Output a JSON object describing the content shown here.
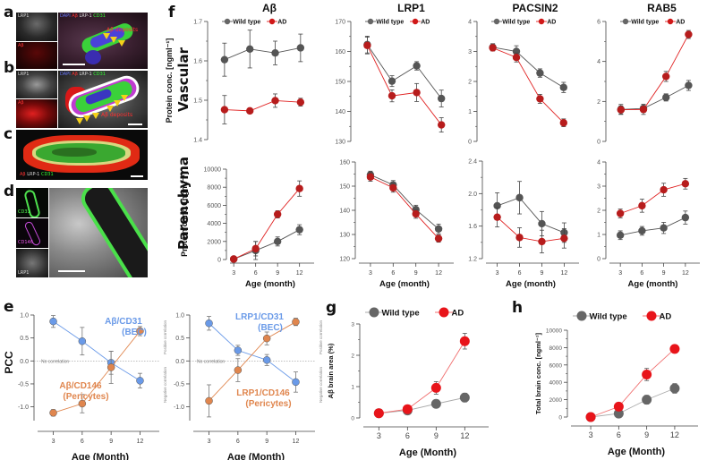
{
  "panel_labels": {
    "a": "a",
    "b": "b",
    "c": "c",
    "d": "d",
    "e": "e",
    "f": "f",
    "g": "g",
    "h": "h"
  },
  "colors": {
    "wild_type": "#555555",
    "ad": "#b71c1c",
    "ad_bright": "#e8141a",
    "bec": "#6a9ae8",
    "pericytes": "#e0864e"
  },
  "micrographs": {
    "a": {
      "small_top": "LRP1",
      "small_bottom": "Aβ",
      "merge": [
        "DAPI",
        "Aβ",
        "LRP-1",
        "CD31"
      ],
      "annotation": "Aβ deposits"
    },
    "b": {
      "small_top": "LRP1",
      "small_bottom": "Aβ",
      "merge": [
        "DAPI",
        "Aβ",
        "LRP-1",
        "CD31"
      ],
      "annotation": "Aβ deposits"
    },
    "c": {
      "merge": [
        "Aβ",
        "LRP-1",
        "CD31"
      ]
    },
    "d": {
      "small_1": "CD31",
      "small_2": "CD146",
      "small_3": "LRP1"
    }
  },
  "row_titles": {
    "vascular": "Vascular",
    "parenchyma": "Parenchyma"
  },
  "chart_data": [
    {
      "id": "f-vascular-abeta",
      "panel": "f",
      "type": "line",
      "title": "Aβ",
      "row": "Vascular",
      "ylabel": "Protein conc. [ngml⁻¹]",
      "xlabel": "",
      "x": [
        3,
        6,
        9,
        12
      ],
      "ylim": [
        1.4,
        1.7
      ],
      "yticks": [
        1.4,
        1.5,
        1.6,
        1.7
      ],
      "yticklabels": [
        "1.4",
        "1.5",
        "1.6",
        "1.7"
      ],
      "legend": [
        "Wild type",
        "AD"
      ],
      "legend_position": "top",
      "series": [
        {
          "name": "Wild type",
          "values": [
            1.603,
            1.63,
            1.62,
            1.633
          ],
          "errors": [
            0.042,
            0.048,
            0.03,
            0.035
          ]
        },
        {
          "name": "AD",
          "values": [
            1.476,
            1.473,
            1.499,
            1.495
          ],
          "errors": [
            0.036,
            0.005,
            0.017,
            0.01
          ]
        }
      ]
    },
    {
      "id": "f-vascular-lrp1",
      "panel": "f",
      "type": "line",
      "title": "LRP1",
      "row": "Vascular",
      "x": [
        3,
        6,
        9,
        12
      ],
      "ylim": [
        130,
        170
      ],
      "yticks": [
        130,
        140,
        150,
        160,
        170
      ],
      "yticklabels": [
        "130",
        "140",
        "150",
        "160",
        "170"
      ],
      "legend": [
        "Wild type",
        "AD"
      ],
      "legend_position": "top",
      "series": [
        {
          "name": "Wild type",
          "values": [
            162.3,
            150.1,
            155.2,
            144.3
          ],
          "errors": [
            2.8,
            1.8,
            1.4,
            2.8
          ]
        },
        {
          "name": "AD",
          "values": [
            162.0,
            145.2,
            146.3,
            135.5
          ],
          "errors": [
            2.8,
            2.0,
            3.0,
            2.4
          ]
        }
      ]
    },
    {
      "id": "f-vascular-pacsin2",
      "panel": "f",
      "type": "line",
      "title": "PACSIN2",
      "row": "Vascular",
      "x": [
        3,
        6,
        9,
        12
      ],
      "ylim": [
        0,
        4
      ],
      "yticks": [
        0,
        1,
        2,
        3,
        4
      ],
      "yticklabels": [
        "0",
        "1",
        "2",
        "3",
        "4"
      ],
      "legend": [
        "Wild type",
        "AD"
      ],
      "legend_position": "top",
      "series": [
        {
          "name": "Wild type",
          "values": [
            3.14,
            3.0,
            2.28,
            1.8
          ],
          "errors": [
            0.12,
            0.19,
            0.14,
            0.17
          ]
        },
        {
          "name": "AD",
          "values": [
            3.12,
            2.8,
            1.42,
            0.62
          ],
          "errors": [
            0.1,
            0.15,
            0.15,
            0.13
          ]
        }
      ]
    },
    {
      "id": "f-vascular-rab5",
      "panel": "f",
      "type": "line",
      "title": "RAB5",
      "row": "Vascular",
      "x": [
        3,
        6,
        9,
        12
      ],
      "ylim": [
        0,
        6
      ],
      "yticks": [
        0,
        2,
        4,
        6
      ],
      "yticklabels": [
        "0",
        "2",
        "4",
        "6"
      ],
      "legend": [
        "Wild type",
        "AD"
      ],
      "legend_position": "top",
      "series": [
        {
          "name": "Wild type",
          "values": [
            1.6,
            1.65,
            2.2,
            2.8
          ],
          "errors": [
            0.25,
            0.2,
            0.18,
            0.25
          ]
        },
        {
          "name": "AD",
          "values": [
            1.58,
            1.6,
            3.25,
            5.35
          ],
          "errors": [
            0.2,
            0.25,
            0.25,
            0.2
          ]
        }
      ]
    },
    {
      "id": "f-parenchyma-abeta",
      "panel": "f",
      "type": "line",
      "row": "Parenchyma",
      "ylabel": "Protein conc. [ngml⁻¹]",
      "xlabel": "Age (month)",
      "x": [
        3,
        6,
        9,
        12
      ],
      "ylim": [
        0,
        10000
      ],
      "yticks": [
        0,
        2000,
        4000,
        6000,
        8000,
        10000
      ],
      "yticklabels": [
        "0",
        "2000",
        "4000",
        "6000",
        "8000",
        "10000"
      ],
      "xticklabels": [
        "3",
        "6",
        "9",
        "12"
      ],
      "series": [
        {
          "name": "Wild type",
          "values": [
            50,
            1000,
            2000,
            3300
          ],
          "errors": [
            200,
            1000,
            500,
            550
          ]
        },
        {
          "name": "AD",
          "values": [
            50,
            1200,
            5000,
            7850
          ],
          "errors": [
            150,
            800,
            400,
            850
          ]
        }
      ]
    },
    {
      "id": "f-parenchyma-lrp1",
      "panel": "f",
      "type": "line",
      "row": "Parenchyma",
      "xlabel": "Age (month)",
      "x": [
        3,
        6,
        9,
        12
      ],
      "ylim": [
        120,
        160
      ],
      "yticks": [
        120,
        130,
        140,
        150,
        160
      ],
      "yticklabels": [
        "120",
        "130",
        "140",
        "150",
        "160"
      ],
      "xticklabels": [
        "3",
        "6",
        "9",
        "12"
      ],
      "series": [
        {
          "name": "Wild type",
          "values": [
            154.7,
            150.5,
            140.3,
            132.3
          ],
          "errors": [
            1.5,
            1.8,
            1.8,
            2.0
          ]
        },
        {
          "name": "AD",
          "values": [
            153.8,
            149.3,
            138.5,
            128.3
          ],
          "errors": [
            1.8,
            1.8,
            1.8,
            1.5
          ]
        }
      ]
    },
    {
      "id": "f-parenchyma-pacsin2",
      "panel": "f",
      "type": "line",
      "row": "Parenchyma",
      "xlabel": "Age (month)",
      "x": [
        3,
        6,
        9,
        12
      ],
      "ylim": [
        1.2,
        2.4
      ],
      "yticks": [
        1.2,
        1.6,
        2.0,
        2.4
      ],
      "yticklabels": [
        "1.2",
        "1.6",
        "2.0",
        "2.4"
      ],
      "xticklabels": [
        "3",
        "6",
        "9",
        "12"
      ],
      "series": [
        {
          "name": "Wild type",
          "values": [
            1.85,
            1.95,
            1.63,
            1.52
          ],
          "errors": [
            0.16,
            0.2,
            0.15,
            0.12
          ]
        },
        {
          "name": "AD",
          "values": [
            1.71,
            1.46,
            1.41,
            1.45
          ],
          "errors": [
            0.12,
            0.12,
            0.14,
            0.12
          ]
        }
      ]
    },
    {
      "id": "f-parenchyma-rab5",
      "panel": "f",
      "type": "line",
      "row": "Parenchyma",
      "xlabel": "Age (month)",
      "x": [
        3,
        6,
        9,
        12
      ],
      "ylim": [
        0,
        4
      ],
      "yticks": [
        0,
        1,
        2,
        3,
        4
      ],
      "yticklabels": [
        "0",
        "1",
        "2",
        "3",
        "4"
      ],
      "xticklabels": [
        "3",
        "6",
        "9",
        "12"
      ],
      "series": [
        {
          "name": "Wild type",
          "values": [
            0.97,
            1.15,
            1.27,
            1.7
          ],
          "errors": [
            0.18,
            0.18,
            0.23,
            0.27
          ]
        },
        {
          "name": "AD",
          "values": [
            1.87,
            2.19,
            2.85,
            3.1
          ],
          "errors": [
            0.18,
            0.27,
            0.27,
            0.22
          ]
        }
      ]
    },
    {
      "id": "e-abeta",
      "panel": "e",
      "type": "line",
      "ylabel": "PCC",
      "xlabel": "Age (Month)",
      "x": [
        3,
        6,
        9,
        12
      ],
      "ylim": [
        -1.3,
        1.0
      ],
      "yticks": [
        -1.0,
        -0.5,
        0.0,
        0.5,
        1.0
      ],
      "yticklabels": [
        "-1.0",
        "-0.5",
        "0.0",
        "0.5",
        "1.0"
      ],
      "xticklabels": [
        "3",
        "6",
        "9",
        "12"
      ],
      "reference_line": {
        "y": 0,
        "label": "No correlation"
      },
      "side_labels": {
        "top": "Positive correlation",
        "bottom": "Negative correlation"
      },
      "series": [
        {
          "name": "Aβ/CD31 (BEC)",
          "label_lines": [
            "Aβ/CD31",
            "(BEC)"
          ],
          "values": [
            0.86,
            0.43,
            -0.04,
            -0.43
          ],
          "errors": [
            0.13,
            0.3,
            0.25,
            0.16
          ]
        },
        {
          "name": "Aβ/CD146 (Pericytes)",
          "label_lines": [
            "Aβ/CD146",
            "(Pericytes)"
          ],
          "values": [
            -1.13,
            -0.93,
            -0.14,
            0.65
          ],
          "errors": [
            0.07,
            0.2,
            0.35,
            0.1
          ]
        }
      ]
    },
    {
      "id": "e-lrp1",
      "panel": "e",
      "type": "line",
      "xlabel": "Age (Month)",
      "x": [
        3,
        6,
        9,
        12
      ],
      "ylim": [
        -1.3,
        1.0
      ],
      "yticks": [
        -1.0,
        -0.5,
        0.0,
        0.5,
        1.0
      ],
      "yticklabels": [
        "-1.0",
        "-0.5",
        "0.0",
        "0.5",
        "1.0"
      ],
      "xticklabels": [
        "3",
        "6",
        "9",
        "12"
      ],
      "reference_line": {
        "y": 0,
        "label": "No correlation"
      },
      "side_labels": {
        "top": "Positive correlation",
        "bottom": "Negative correlation"
      },
      "series": [
        {
          "name": "LRP1/CD31 (BEC)",
          "label_lines": [
            "LRP1/CD31",
            "(BEC)"
          ],
          "values": [
            0.82,
            0.23,
            0.02,
            -0.46
          ],
          "errors": [
            0.15,
            0.11,
            0.12,
            0.22
          ]
        },
        {
          "name": "LRP1/CD146 (Pericytes)",
          "label_lines": [
            "LRP1/CD146",
            "(Pericytes)"
          ],
          "values": [
            -0.87,
            -0.2,
            0.49,
            0.85
          ],
          "errors": [
            0.35,
            0.25,
            0.14,
            0.08
          ]
        }
      ]
    },
    {
      "id": "g",
      "panel": "g",
      "type": "line",
      "ylabel": "Aβ brain area (%)",
      "xlabel": "Age (Month)",
      "x": [
        3,
        6,
        9,
        12
      ],
      "ylim": [
        0,
        3
      ],
      "yticks": [
        0,
        1,
        2,
        3
      ],
      "yticklabels": [
        "0",
        "1",
        "2",
        "3"
      ],
      "xticklabels": [
        "3",
        "6",
        "9",
        "12"
      ],
      "legend": [
        "Wild type",
        "AD"
      ],
      "legend_position": "top",
      "series": [
        {
          "name": "Wild type",
          "values": [
            0.15,
            0.24,
            0.45,
            0.65
          ],
          "errors": [
            0.04,
            0.04,
            0.12,
            0.14
          ]
        },
        {
          "name": "AD",
          "values": [
            0.15,
            0.28,
            0.96,
            2.45
          ],
          "errors": [
            0.03,
            0.04,
            0.2,
            0.25
          ]
        }
      ]
    },
    {
      "id": "h",
      "panel": "h",
      "type": "line",
      "ylabel": "Total brain conc. [ngml⁻¹]",
      "xlabel": "Age (Month)",
      "x": [
        3,
        6,
        9,
        12
      ],
      "ylim": [
        0,
        10000
      ],
      "yticks": [
        0,
        2000,
        4000,
        6000,
        8000,
        10000
      ],
      "yticklabels": [
        "0",
        "2000",
        "4000",
        "6000",
        "8000",
        "10000"
      ],
      "xticklabels": [
        "3",
        "6",
        "9",
        "12"
      ],
      "legend": [
        "Wild type",
        "AD"
      ],
      "legend_position": "top",
      "series": [
        {
          "name": "Wild type",
          "values": [
            0,
            400,
            2000,
            3300
          ],
          "errors": [
            50,
            100,
            500,
            550
          ]
        },
        {
          "name": "AD",
          "values": [
            0,
            1200,
            4900,
            7850
          ],
          "errors": [
            50,
            100,
            700,
            450
          ]
        }
      ]
    }
  ]
}
